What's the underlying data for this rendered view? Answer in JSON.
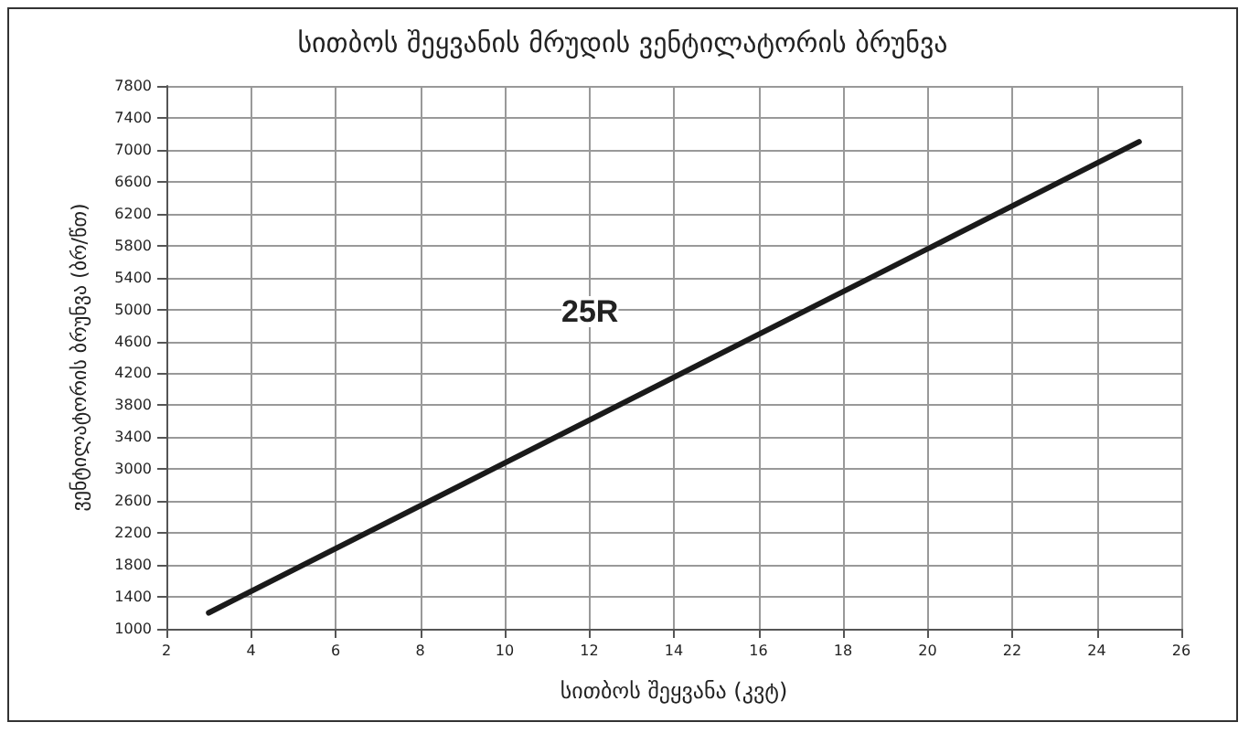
{
  "chart_data": {
    "type": "line",
    "title": "სითბოს შეყვანის მრუდის ვენტილატორის ბრუნვა",
    "xlabel": "სითბოს შეყვანა (კვტ)",
    "ylabel": "ვენტილატორის ბრუნვა (ბრ/წთ)",
    "x": [
      3,
      25
    ],
    "series": [
      {
        "color": "#1a1a1a",
        "values": [
          1200,
          7100
        ]
      }
    ],
    "annotations": [
      "25R"
    ],
    "xlim": [
      2,
      26
    ],
    "xticks": [
      2,
      4,
      6,
      8,
      10,
      12,
      14,
      16,
      18,
      20,
      22,
      24,
      26
    ],
    "ylim": [
      1000,
      7800
    ],
    "yticks": [
      1000,
      1400,
      1800,
      2200,
      2600,
      3000,
      3400,
      3800,
      4200,
      4600,
      5000,
      5400,
      5800,
      6200,
      6600,
      7000,
      7400,
      7800
    ],
    "grid": true,
    "marker": "none",
    "line_style": "solid"
  }
}
